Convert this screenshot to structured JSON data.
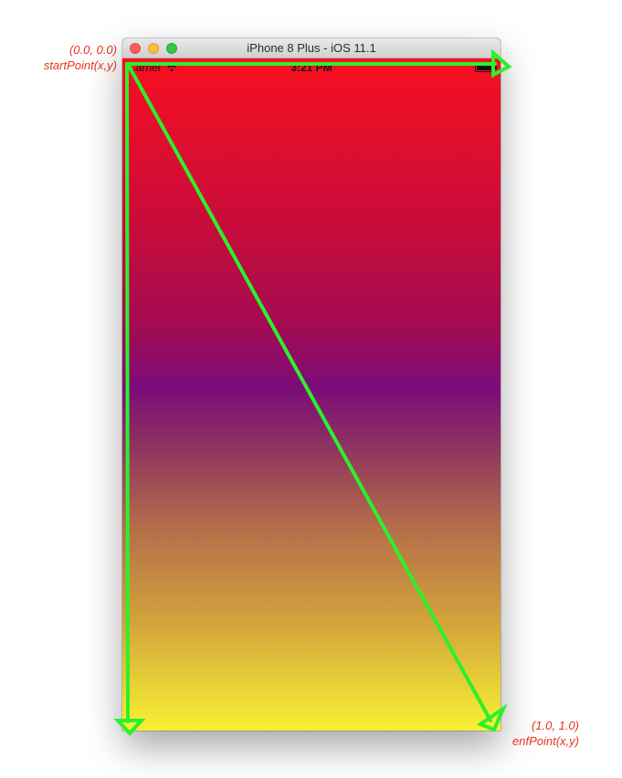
{
  "annotations": {
    "start_coords": "(0.0, 0.0)",
    "start_label": "startPoint(x,y)",
    "end_coords": "(1.0, 1.0)",
    "end_label": "enfPoint(x,y)"
  },
  "window": {
    "title": "iPhone 8 Plus - iOS 11.1"
  },
  "statusbar": {
    "carrier": "Carrier",
    "time": "3:21 PM",
    "wifi_icon": "wifi-icon",
    "battery_icon": "battery-icon",
    "battery_level": 1.0
  },
  "gradient": {
    "top_color": "#f90f1e",
    "middle_color": "#7b0c78",
    "bottom_color": "#f7f233"
  },
  "arrows": {
    "color": "#2cf02c"
  }
}
